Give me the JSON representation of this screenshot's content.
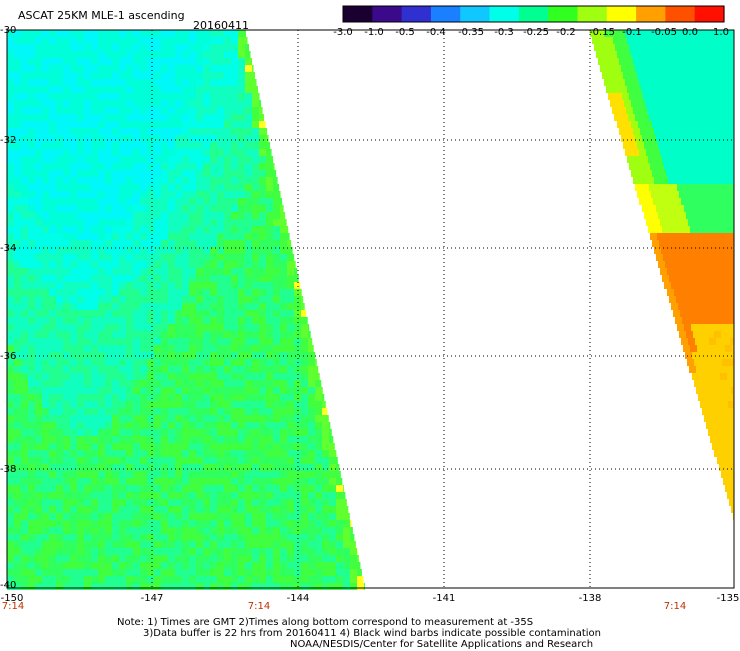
{
  "header": {
    "title": "ASCAT 25KM MLE-1 ascending",
    "date": "20160411"
  },
  "colorbar": {
    "labels": [
      "-3.0",
      "-1.0",
      "-0.5",
      "-0.4",
      "-0.35",
      "-0.3",
      "-0.25",
      "-0.2",
      "-0.15",
      "-0.1",
      "-0.05",
      "0.0",
      "1.0"
    ],
    "colors": [
      "#1a0030",
      "#3a0a8a",
      "#3030d0",
      "#1a80ff",
      "#10c8ff",
      "#00ffe8",
      "#00ff90",
      "#30ff20",
      "#a0ff10",
      "#ffff00",
      "#ffa000",
      "#ff5000",
      "#ff1000"
    ]
  },
  "axes": {
    "lat_labels": [
      "-30",
      "-32",
      "-34",
      "-36",
      "-38",
      "-40"
    ],
    "lon_labels": [
      "-150",
      "-147",
      "-144",
      "-141",
      "-138",
      "-135"
    ],
    "lat_range": [
      -40,
      -30
    ],
    "lon_range": [
      -150,
      -135
    ],
    "grid": "dotted"
  },
  "times": [
    "7:14",
    "7:14",
    "7:14"
  ],
  "notes": [
    "Note: 1) Times are GMT 2)Times along bottom correspond to measurement at -35S",
    "3)Data buffer is 22 hrs from 20160411 4) Black wind barbs indicate possible contamination",
    "NOAA/NESDIS/Center for Satellite Applications and Research"
  ],
  "colors": {
    "left_swath": "#30ff60",
    "right_swath_high": "#ff8000",
    "text_time": "#c03000"
  }
}
